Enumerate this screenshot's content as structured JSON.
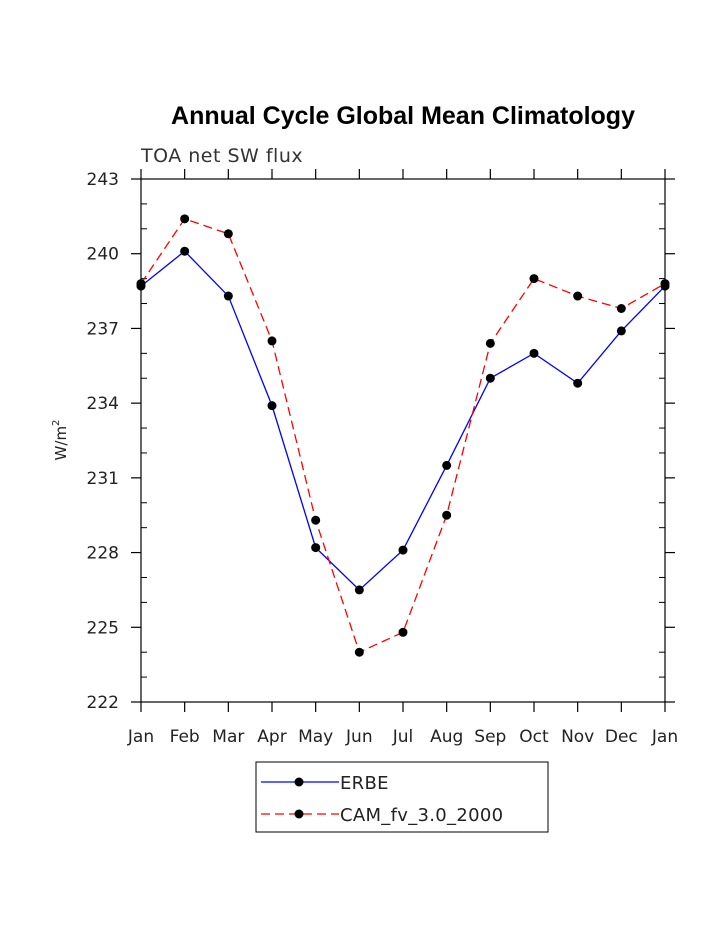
{
  "chart_data": {
    "type": "line",
    "title": "Annual Cycle Global Mean Climatology",
    "subtitle": "TOA net SW flux",
    "xlabel": "",
    "ylabel": "W/m",
    "ylabel_superscript": "2",
    "categories": [
      "Jan",
      "Feb",
      "Mar",
      "Apr",
      "May",
      "Jun",
      "Jul",
      "Aug",
      "Sep",
      "Oct",
      "Nov",
      "Dec",
      "Jan"
    ],
    "ylim": [
      222,
      243
    ],
    "yticks": [
      "222",
      "225",
      "228",
      "231",
      "234",
      "237",
      "240",
      "243"
    ],
    "grid": false,
    "legend_position": "bottom",
    "series": [
      {
        "name": "ERBE",
        "color": "#0000ff",
        "dash": "solid",
        "marker": "filled-circle",
        "values": [
          238.7,
          240.1,
          238.3,
          233.9,
          228.2,
          226.5,
          228.1,
          231.5,
          235.0,
          236.0,
          234.8,
          236.9,
          238.7
        ]
      },
      {
        "name": "CAM_fv_3.0_2000",
        "color": "#ff0000",
        "dash": "dashed",
        "marker": "filled-circle",
        "values": [
          238.8,
          241.4,
          240.8,
          236.5,
          229.3,
          224.0,
          224.8,
          229.5,
          236.4,
          239.0,
          238.3,
          237.8,
          238.8
        ]
      }
    ]
  }
}
